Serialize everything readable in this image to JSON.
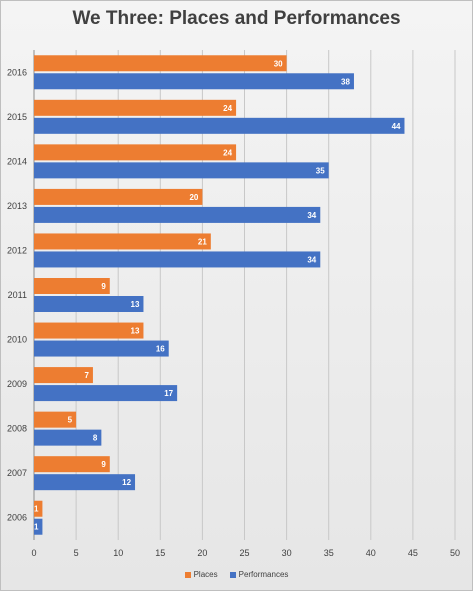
{
  "chart_data": {
    "type": "bar",
    "orientation": "horizontal",
    "title": "We Three: Places and Performances",
    "categories": [
      "2016",
      "2015",
      "2014",
      "2013",
      "2012",
      "2011",
      "2010",
      "2009",
      "2008",
      "2007",
      "2006"
    ],
    "series": [
      {
        "name": "Places",
        "color": "#ED7D31",
        "values": [
          30,
          24,
          24,
          20,
          21,
          9,
          13,
          7,
          5,
          9,
          1
        ]
      },
      {
        "name": "Performances",
        "color": "#4472C4",
        "values": [
          38,
          44,
          35,
          34,
          34,
          13,
          16,
          17,
          8,
          12,
          1
        ]
      }
    ],
    "xlim": [
      0,
      50
    ],
    "xticks": [
      0,
      5,
      10,
      15,
      20,
      25,
      30,
      35,
      40,
      45,
      50
    ],
    "xlabel": "",
    "ylabel": "",
    "grid": "vertical",
    "legend": "bottom",
    "data_labels": true
  }
}
